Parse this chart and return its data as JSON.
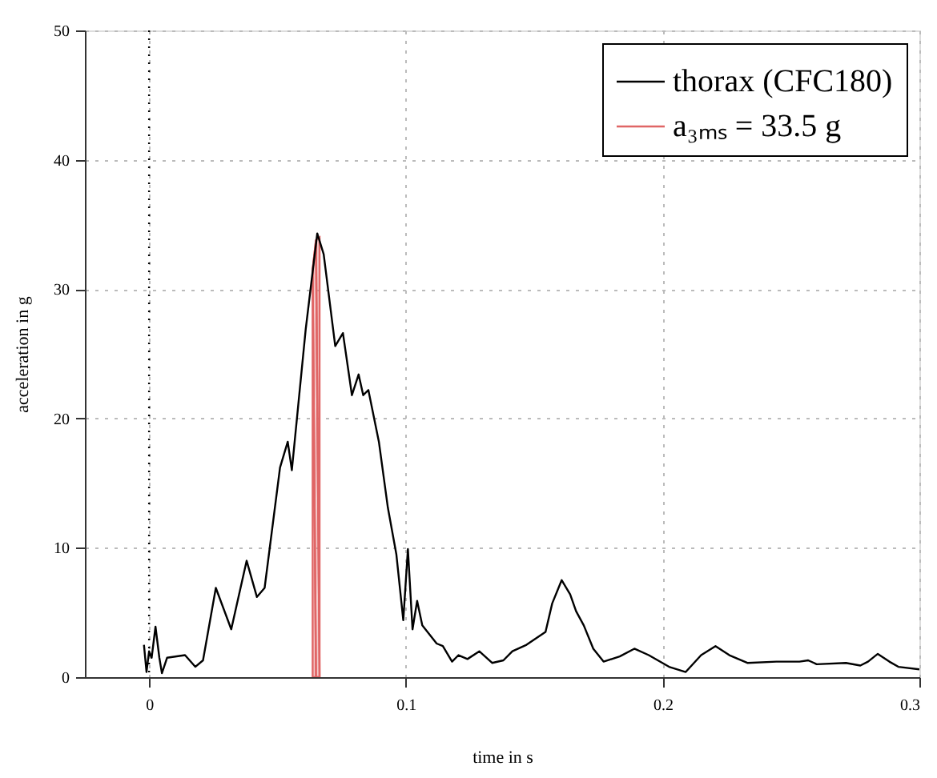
{
  "chart_data": {
    "type": "line",
    "xlabel": "time in s",
    "ylabel": "acceleration in g",
    "xlim": [
      -0.025,
      0.3
    ],
    "xticks": [
      0,
      0.1,
      0.2,
      0.3
    ],
    "ylim": [
      0,
      50
    ],
    "yticks": [
      0,
      10,
      20,
      30,
      40,
      50
    ],
    "grid": true,
    "legend": "top right",
    "line_style": "solid",
    "ref_lines": [
      {
        "axis": "x",
        "value": 0,
        "color": "#000000",
        "line_style": "dotted"
      }
    ],
    "series": [
      {
        "name": "thorax (CFC180)",
        "color": "#000000",
        "x": [
          -0.002,
          -0.001,
          0.0,
          0.001,
          0.0025,
          0.004,
          0.005,
          0.007,
          0.014,
          0.018,
          0.021,
          0.026,
          0.032,
          0.038,
          0.042,
          0.045,
          0.051,
          0.054,
          0.0556,
          0.061,
          0.0655,
          0.068,
          0.0725,
          0.0755,
          0.079,
          0.0816,
          0.0834,
          0.0854,
          0.0895,
          0.093,
          0.0963,
          0.099,
          0.1008,
          0.1026,
          0.1044,
          0.1064,
          0.112,
          0.1144,
          0.118,
          0.1205,
          0.124,
          0.1286,
          0.1336,
          0.138,
          0.1415,
          0.147,
          0.1544,
          0.157,
          0.1607,
          0.164,
          0.1663,
          0.1693,
          0.173,
          0.177,
          0.1833,
          0.189,
          0.1946,
          0.2025,
          0.209,
          0.215,
          0.2206,
          0.226,
          0.233,
          0.2443,
          0.2533,
          0.2567,
          0.26,
          0.2714,
          0.277,
          0.28,
          0.2838,
          0.2883,
          0.2918,
          0.3
        ],
        "values": [
          2.5,
          0.4,
          2.0,
          1.5,
          3.9,
          1.5,
          0.3,
          1.5,
          1.7,
          0.8,
          1.3,
          6.9,
          3.7,
          9.0,
          6.2,
          6.9,
          16.2,
          18.2,
          16.0,
          26.9,
          34.3,
          32.7,
          25.6,
          26.6,
          21.8,
          23.4,
          21.8,
          22.2,
          18.2,
          13.1,
          9.5,
          4.4,
          9.9,
          3.7,
          5.9,
          4.0,
          2.6,
          2.4,
          1.2,
          1.7,
          1.4,
          2.0,
          1.1,
          1.3,
          2.0,
          2.5,
          3.5,
          5.7,
          7.5,
          6.4,
          5.1,
          4.0,
          2.2,
          1.2,
          1.6,
          2.2,
          1.7,
          0.8,
          0.4,
          1.7,
          2.4,
          1.7,
          1.1,
          1.2,
          1.2,
          1.3,
          1.0,
          1.1,
          0.9,
          1.2,
          1.8,
          1.2,
          0.8,
          0.6
        ]
      },
      {
        "name": "a₃ₘₛ = 33.5 g",
        "type": "area",
        "color": "#e06666",
        "x": [
          0.0637,
          0.065,
          0.0664
        ],
        "values": [
          31.5,
          33.8,
          34.0
        ]
      }
    ]
  }
}
